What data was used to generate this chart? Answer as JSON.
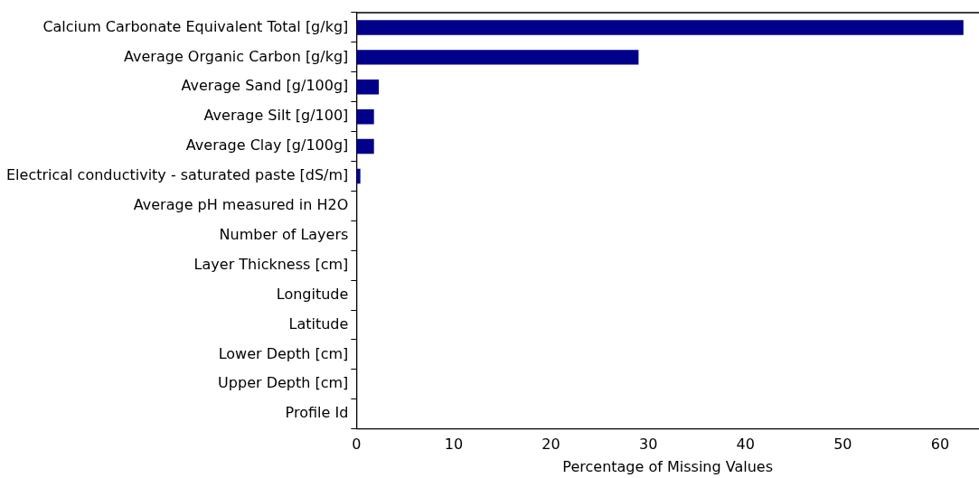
{
  "chart_data": {
    "type": "bar",
    "orientation": "horizontal",
    "xlabel": "Percentage of Missing Values",
    "categories": [
      "Calcium Carbonate Equivalent Total [g/kg]",
      "Average Organic Carbon [g/kg]",
      "Average Sand [g/100g]",
      "Average Silt [g/100]",
      "Average Clay [g/100g]",
      "Electrical conductivity - saturated paste [dS/m]",
      "Average pH measured in H2O",
      "Number of Layers",
      "Layer Thickness [cm]",
      "Longitude",
      "Latitude",
      "Lower Depth [cm]",
      "Upper Depth [cm]",
      "Profile Id"
    ],
    "values": [
      62.4,
      29.0,
      2.3,
      1.8,
      1.8,
      0.4,
      0,
      0,
      0,
      0,
      0,
      0,
      0,
      0
    ],
    "color": "#00008b",
    "xlim": [
      0,
      64
    ],
    "xticks": [
      0,
      10,
      20,
      30,
      40,
      50,
      60
    ],
    "grid": false,
    "legend": false
  }
}
